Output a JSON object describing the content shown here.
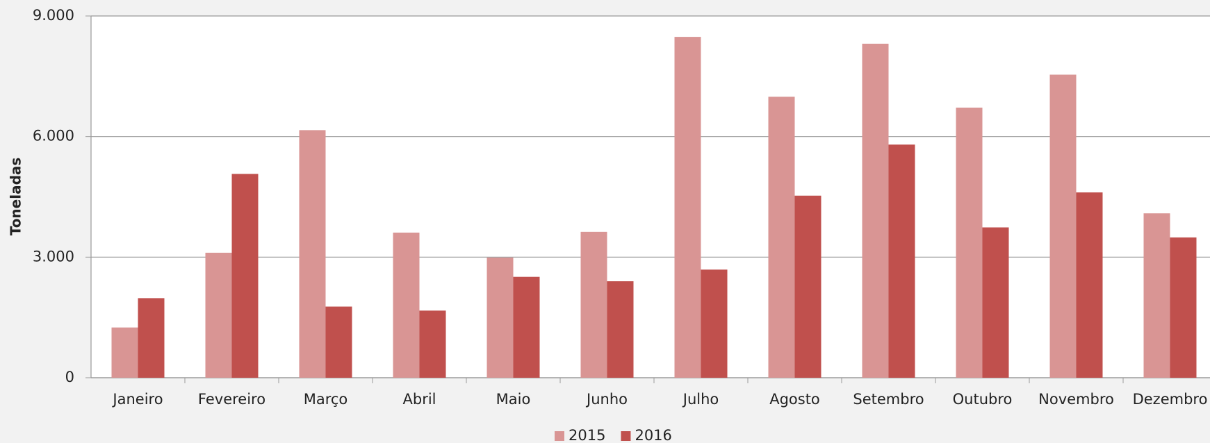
{
  "chart_data": {
    "type": "bar",
    "y_label": "Toneladas",
    "categories": [
      "Janeiro",
      "Fevereiro",
      "Março",
      "Abril",
      "Maio",
      "Junho",
      "Julho",
      "Agosto",
      "Setembro",
      "Outubro",
      "Novembro",
      "Dezembro"
    ],
    "series": [
      {
        "name": "2015",
        "color": "#d99594",
        "values": [
          1250,
          3110,
          6160,
          3610,
          2990,
          3630,
          8480,
          6990,
          8310,
          6720,
          7540,
          4090
        ]
      },
      {
        "name": "2016",
        "color": "#c0504d",
        "values": [
          1980,
          5070,
          1770,
          1670,
          2510,
          2400,
          2690,
          4530,
          5800,
          3740,
          4610,
          3490
        ]
      }
    ],
    "ylim": [
      0,
      9000
    ],
    "yticks": [
      0,
      {
        "value": 3000,
        "label": "3.000"
      },
      {
        "value": 6000,
        "label": "6.000"
      },
      {
        "value": 9000,
        "label": "9.000"
      }
    ],
    "grid": true,
    "legend": "bottom"
  }
}
